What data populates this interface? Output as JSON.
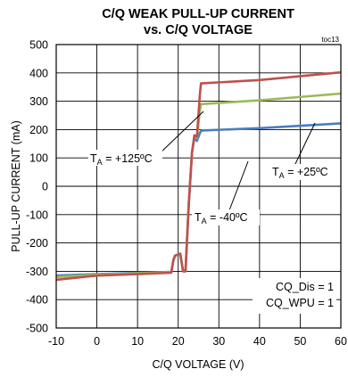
{
  "chart_data": {
    "type": "line",
    "title": "C/Q WEAK PULL-UP CURRENT",
    "subtitle": "vs. C/Q VOLTAGE",
    "tag": "toc13",
    "xlabel": "C/Q VOLTAGE (V)",
    "ylabel": "PULL-UP CURRENT (mA)",
    "xlim": [
      -10,
      60
    ],
    "ylim": [
      -500,
      500
    ],
    "xticks": [
      -10,
      0,
      10,
      20,
      30,
      40,
      50,
      60
    ],
    "yticks": [
      -500,
      -400,
      -300,
      -200,
      -100,
      0,
      100,
      200,
      300,
      400,
      500
    ],
    "grid": true,
    "conditions": [
      "CQ_Dis = 1",
      "CQ_WPU = 1"
    ],
    "series": [
      {
        "name": "T_A = -40°C",
        "color": "#4a7dc0",
        "x": [
          -10,
          0,
          10,
          18.3,
          18.8,
          19.2,
          20.5,
          21.2,
          21.8,
          22.6,
          23.4,
          24.0,
          24.6,
          25.4,
          25.8,
          40,
          60
        ],
        "y": [
          -315,
          -310,
          -305,
          -302,
          -262,
          -245,
          -238,
          -300,
          -300,
          -60,
          120,
          170,
          160,
          190,
          197,
          205,
          222
        ]
      },
      {
        "name": "T_A = +25°C",
        "color": "#9aba59",
        "x": [
          -10,
          0,
          10,
          18.3,
          18.8,
          19.2,
          20.5,
          21.2,
          21.8,
          22.6,
          23.4,
          24.0,
          24.6,
          25.2,
          25.6,
          40,
          60
        ],
        "y": [
          -320,
          -312,
          -307,
          -303,
          -262,
          -245,
          -238,
          -300,
          -300,
          -60,
          120,
          180,
          170,
          250,
          290,
          303,
          327
        ]
      },
      {
        "name": "T_A = +125°C",
        "color": "#c0504d",
        "x": [
          -10,
          0,
          10,
          18.3,
          18.8,
          19.2,
          20.5,
          21.2,
          21.8,
          22.6,
          23.4,
          24.0,
          24.6,
          25.3,
          25.6,
          40,
          60
        ],
        "y": [
          -330,
          -315,
          -310,
          -305,
          -262,
          -245,
          -238,
          -300,
          -300,
          -60,
          120,
          180,
          175,
          320,
          363,
          375,
          402
        ]
      }
    ],
    "annotations": [
      {
        "label": "T",
        "sub": "A",
        "rest": " = +125ºC"
      },
      {
        "label": "T",
        "sub": "A",
        "rest": " = +25ºC"
      },
      {
        "label": "T",
        "sub": "A",
        "rest": " = -40ºC"
      }
    ]
  }
}
